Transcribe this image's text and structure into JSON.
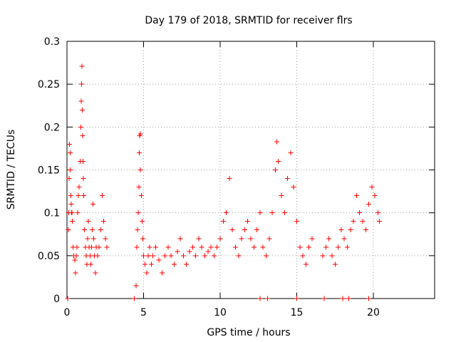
{
  "chart_data": {
    "type": "scatter",
    "title": "Day 179 of 2018, SRMTID for receiver flrs",
    "xlabel": "GPS time / hours",
    "ylabel": "SRMTID / TECUs",
    "xlim": [
      0,
      24
    ],
    "ylim": [
      0,
      0.3
    ],
    "x_ticks": [
      0,
      5,
      10,
      15,
      20
    ],
    "y_ticks": [
      0,
      0.05,
      0.1,
      0.15,
      0.2,
      0.25,
      0.3
    ],
    "x_tick_labels": [
      "0",
      "5",
      "10",
      "15",
      "20"
    ],
    "y_tick_labels": [
      "0",
      "0.05",
      "0.1",
      "0.15",
      "0.2",
      "0.25",
      "0.3"
    ],
    "grid": true,
    "legend": "none",
    "marker": "+",
    "color": "#ff0000",
    "series": [
      {
        "points": [
          [
            0.05,
            0.0
          ],
          [
            0.1,
            0.08
          ],
          [
            0.12,
            0.1
          ],
          [
            0.15,
            0.14
          ],
          [
            0.17,
            0.18
          ],
          [
            0.2,
            0.17
          ],
          [
            0.22,
            0.15
          ],
          [
            0.25,
            0.12
          ],
          [
            0.28,
            0.11
          ],
          [
            0.3,
            0.1
          ],
          [
            0.33,
            0.1
          ],
          [
            0.35,
            0.09
          ],
          [
            0.4,
            0.06
          ],
          [
            0.45,
            0.05
          ],
          [
            0.5,
            0.045
          ],
          [
            0.55,
            0.03
          ],
          [
            0.6,
            0.05
          ],
          [
            0.65,
            0.06
          ],
          [
            0.7,
            0.1
          ],
          [
            0.75,
            0.12
          ],
          [
            0.8,
            0.13
          ],
          [
            0.85,
            0.16
          ],
          [
            0.9,
            0.2
          ],
          [
            0.93,
            0.23
          ],
          [
            0.95,
            0.25
          ],
          [
            0.98,
            0.271
          ],
          [
            1.0,
            0.22
          ],
          [
            1.02,
            0.19
          ],
          [
            1.05,
            0.16
          ],
          [
            1.08,
            0.14
          ],
          [
            1.1,
            0.12
          ],
          [
            1.15,
            0.08
          ],
          [
            1.2,
            0.06
          ],
          [
            1.25,
            0.05
          ],
          [
            1.3,
            0.04
          ],
          [
            1.35,
            0.07
          ],
          [
            1.4,
            0.09
          ],
          [
            1.45,
            0.06
          ],
          [
            1.5,
            0.05
          ],
          [
            1.55,
            0.04
          ],
          [
            1.6,
            0.06
          ],
          [
            1.65,
            0.08
          ],
          [
            1.7,
            0.11
          ],
          [
            1.75,
            0.07
          ],
          [
            1.8,
            0.05
          ],
          [
            1.85,
            0.03
          ],
          [
            1.9,
            0.06
          ],
          [
            2.0,
            0.05
          ],
          [
            2.1,
            0.06
          ],
          [
            2.2,
            0.08
          ],
          [
            2.3,
            0.12
          ],
          [
            2.4,
            0.09
          ],
          [
            2.5,
            0.07
          ],
          [
            2.6,
            0.06
          ],
          [
            4.4,
            0.0
          ],
          [
            4.5,
            0.015
          ],
          [
            4.55,
            0.06
          ],
          [
            4.6,
            0.08
          ],
          [
            4.65,
            0.1
          ],
          [
            4.7,
            0.13
          ],
          [
            4.72,
            0.17
          ],
          [
            4.75,
            0.19
          ],
          [
            4.78,
            0.192
          ],
          [
            4.8,
            0.15
          ],
          [
            4.85,
            0.12
          ],
          [
            4.9,
            0.09
          ],
          [
            4.95,
            0.07
          ],
          [
            5.0,
            0.05
          ],
          [
            5.1,
            0.04
          ],
          [
            5.2,
            0.03
          ],
          [
            5.3,
            0.05
          ],
          [
            5.4,
            0.06
          ],
          [
            5.5,
            0.04
          ],
          [
            5.6,
            0.05
          ],
          [
            5.8,
            0.06
          ],
          [
            6.0,
            0.045
          ],
          [
            6.2,
            0.03
          ],
          [
            6.4,
            0.05
          ],
          [
            6.6,
            0.06
          ],
          [
            6.8,
            0.05
          ],
          [
            7.0,
            0.04
          ],
          [
            7.2,
            0.055
          ],
          [
            7.4,
            0.07
          ],
          [
            7.6,
            0.05
          ],
          [
            7.8,
            0.04
          ],
          [
            8.0,
            0.055
          ],
          [
            8.2,
            0.06
          ],
          [
            8.4,
            0.05
          ],
          [
            8.6,
            0.07
          ],
          [
            8.8,
            0.06
          ],
          [
            9.0,
            0.05
          ],
          [
            9.2,
            0.055
          ],
          [
            9.4,
            0.06
          ],
          [
            9.6,
            0.05
          ],
          [
            9.8,
            0.06
          ],
          [
            10.0,
            0.07
          ],
          [
            10.2,
            0.09
          ],
          [
            10.4,
            0.1
          ],
          [
            10.6,
            0.14
          ],
          [
            10.8,
            0.08
          ],
          [
            11.0,
            0.06
          ],
          [
            11.2,
            0.05
          ],
          [
            11.4,
            0.07
          ],
          [
            11.6,
            0.08
          ],
          [
            11.8,
            0.09
          ],
          [
            12.0,
            0.07
          ],
          [
            12.2,
            0.06
          ],
          [
            12.4,
            0.08
          ],
          [
            12.6,
            0.1
          ],
          [
            12.8,
            0.06
          ],
          [
            13.0,
            0.05
          ],
          [
            13.2,
            0.07
          ],
          [
            13.4,
            0.1
          ],
          [
            13.6,
            0.15
          ],
          [
            13.7,
            0.183
          ],
          [
            13.8,
            0.16
          ],
          [
            14.0,
            0.12
          ],
          [
            14.2,
            0.1
          ],
          [
            14.4,
            0.14
          ],
          [
            14.6,
            0.17
          ],
          [
            14.8,
            0.13
          ],
          [
            15.0,
            0.09
          ],
          [
            15.2,
            0.06
          ],
          [
            15.4,
            0.05
          ],
          [
            15.6,
            0.04
          ],
          [
            15.8,
            0.06
          ],
          [
            16.0,
            0.07
          ],
          [
            16.7,
            0.05
          ],
          [
            16.9,
            0.06
          ],
          [
            17.1,
            0.07
          ],
          [
            17.3,
            0.05
          ],
          [
            17.5,
            0.04
          ],
          [
            17.7,
            0.06
          ],
          [
            17.9,
            0.08
          ],
          [
            18.1,
            0.07
          ],
          [
            18.3,
            0.06
          ],
          [
            18.5,
            0.08
          ],
          [
            18.7,
            0.09
          ],
          [
            18.9,
            0.12
          ],
          [
            19.1,
            0.1
          ],
          [
            19.3,
            0.09
          ],
          [
            19.5,
            0.08
          ],
          [
            19.7,
            0.11
          ],
          [
            19.9,
            0.13
          ],
          [
            20.1,
            0.12
          ],
          [
            20.3,
            0.1
          ],
          [
            20.4,
            0.09
          ],
          [
            12.6,
            0.0
          ],
          [
            13.1,
            0.0
          ],
          [
            15.0,
            0.0
          ],
          [
            16.8,
            0.0
          ],
          [
            18.0,
            0.0
          ],
          [
            18.4,
            0.0
          ],
          [
            19.7,
            0.0
          ]
        ]
      }
    ]
  }
}
